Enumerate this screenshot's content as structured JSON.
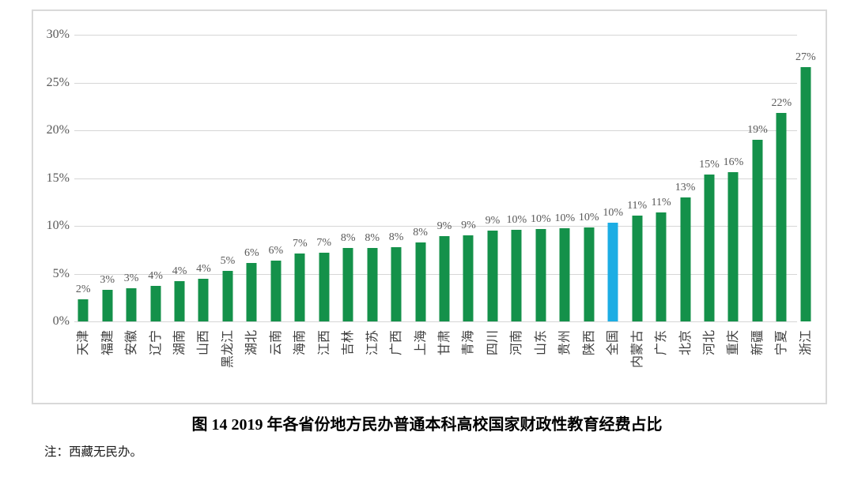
{
  "page": {
    "caption_title": "图 14  2019 年各省份地方民办普通本科高校国家财政性教育经费占比",
    "note": "注：西藏无民办。"
  },
  "chart_data": {
    "type": "bar",
    "title": "图 14  2019 年各省份地方民办普通本科高校国家财政性教育经费占比",
    "note": "注：西藏无民办。",
    "categories": [
      "天津",
      "福建",
      "安徽",
      "辽宁",
      "湖南",
      "山西",
      "黑龙江",
      "湖北",
      "云南",
      "海南",
      "江西",
      "吉林",
      "江苏",
      "广西",
      "上海",
      "甘肃",
      "青海",
      "四川",
      "河南",
      "山东",
      "贵州",
      "陕西",
      "全国",
      "内蒙古",
      "广东",
      "北京",
      "河北",
      "重庆",
      "新疆",
      "宁夏",
      "浙江"
    ],
    "values": [
      2,
      3,
      3,
      4,
      4,
      4,
      5,
      6,
      6,
      7,
      7,
      8,
      8,
      8,
      8,
      9,
      9,
      9,
      10,
      10,
      10,
      10,
      10,
      11,
      11,
      13,
      15,
      16,
      19,
      22,
      27
    ],
    "value_labels": [
      "2%",
      "3%",
      "3%",
      "4%",
      "4%",
      "4%",
      "5%",
      "6%",
      "6%",
      "7%",
      "7%",
      "8%",
      "8%",
      "8%",
      "8%",
      "9%",
      "9%",
      "9%",
      "10%",
      "10%",
      "10%",
      "10%",
      "10%",
      "11%",
      "11%",
      "13%",
      "15%",
      "16%",
      "19%",
      "22%",
      "27%"
    ],
    "render_heights_pct": [
      2.3,
      3.3,
      3.5,
      3.7,
      4.2,
      4.5,
      5.3,
      6.1,
      6.4,
      7.1,
      7.2,
      7.65,
      7.7,
      7.8,
      8.3,
      8.9,
      9.0,
      9.5,
      9.6,
      9.7,
      9.75,
      9.8,
      10.3,
      11.1,
      11.4,
      13.0,
      15.4,
      15.6,
      19.0,
      21.8,
      26.6
    ],
    "highlight_index": 22,
    "highlight_category": "全国",
    "y_axis": {
      "ticks": [
        "0%",
        "5%",
        "10%",
        "15%",
        "20%",
        "25%",
        "30%"
      ],
      "min": 0,
      "max": 30,
      "step": 5
    },
    "grid": true,
    "legend": false,
    "colors": {
      "bar": "#14914A",
      "highlight": "#1CADE4",
      "grid": "#D6D6D6",
      "frame_border": "#D9D9D9",
      "axis_text": "#595959",
      "category_text": "#3D3D3D",
      "title_text": "#000000"
    }
  }
}
